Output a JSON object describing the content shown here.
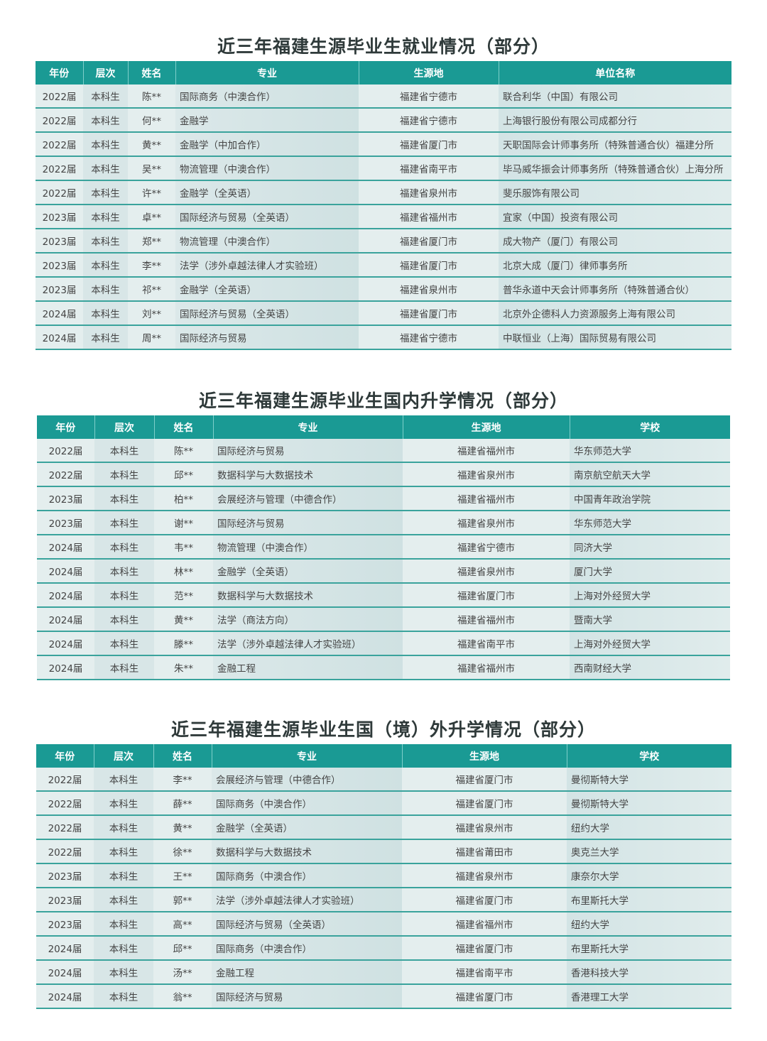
{
  "tables": [
    {
      "title": "近三年福建生源毕业生就业情况（部分）",
      "headers": [
        "年份",
        "层次",
        "姓名",
        "专业",
        "生源地",
        "单位名称"
      ],
      "rows": [
        [
          "2022届",
          "本科生",
          "陈**",
          "国际商务（中澳合作）",
          "福建省宁德市",
          "联合利华（中国）有限公司"
        ],
        [
          "2022届",
          "本科生",
          "何**",
          "金融学",
          "福建省宁德市",
          "上海银行股份有限公司成都分行"
        ],
        [
          "2022届",
          "本科生",
          "黄**",
          "金融学（中加合作）",
          "福建省厦门市",
          "天职国际会计师事务所（特殊普通合伙）福建分所"
        ],
        [
          "2022届",
          "本科生",
          "吴**",
          "物流管理（中澳合作）",
          "福建省南平市",
          "毕马威华振会计师事务所（特殊普通合伙）上海分所"
        ],
        [
          "2022届",
          "本科生",
          "许**",
          "金融学（全英语）",
          "福建省泉州市",
          "斐乐服饰有限公司"
        ],
        [
          "2023届",
          "本科生",
          "卓**",
          "国际经济与贸易（全英语）",
          "福建省福州市",
          "宜家（中国）投资有限公司"
        ],
        [
          "2023届",
          "本科生",
          "郑**",
          "物流管理（中澳合作）",
          "福建省厦门市",
          "成大物产（厦门）有限公司"
        ],
        [
          "2023届",
          "本科生",
          "李**",
          "法学（涉外卓越法律人才实验班）",
          "福建省厦门市",
          "北京大成（厦门）律师事务所"
        ],
        [
          "2023届",
          "本科生",
          "祁**",
          "金融学（全英语）",
          "福建省泉州市",
          "普华永道中天会计师事务所（特殊普通合伙）"
        ],
        [
          "2024届",
          "本科生",
          "刘**",
          "国际经济与贸易（全英语）",
          "福建省厦门市",
          "北京外企德科人力资源服务上海有限公司"
        ],
        [
          "2024届",
          "本科生",
          "周**",
          "国际经济与贸易",
          "福建省宁德市",
          "中联恒业（上海）国际贸易有限公司"
        ]
      ]
    },
    {
      "title": "近三年福建生源毕业生国内升学情况（部分）",
      "headers": [
        "年份",
        "层次",
        "姓名",
        "专业",
        "生源地",
        "学校"
      ],
      "rows": [
        [
          "2022届",
          "本科生",
          "陈**",
          "国际经济与贸易",
          "福建省福州市",
          "华东师范大学"
        ],
        [
          "2022届",
          "本科生",
          "邱**",
          "数据科学与大数据技术",
          "福建省泉州市",
          "南京航空航天大学"
        ],
        [
          "2023届",
          "本科生",
          "柏**",
          "会展经济与管理（中德合作）",
          "福建省福州市",
          "中国青年政治学院"
        ],
        [
          "2023届",
          "本科生",
          "谢**",
          "国际经济与贸易",
          "福建省泉州市",
          "华东师范大学"
        ],
        [
          "2024届",
          "本科生",
          "韦**",
          "物流管理（中澳合作）",
          "福建省宁德市",
          "同济大学"
        ],
        [
          "2024届",
          "本科生",
          "林**",
          "金融学（全英语）",
          "福建省泉州市",
          "厦门大学"
        ],
        [
          "2024届",
          "本科生",
          "范**",
          "数据科学与大数据技术",
          "福建省厦门市",
          "上海对外经贸大学"
        ],
        [
          "2024届",
          "本科生",
          "黄**",
          "法学（商法方向）",
          "福建省福州市",
          "暨南大学"
        ],
        [
          "2024届",
          "本科生",
          "滕**",
          "法学（涉外卓越法律人才实验班）",
          "福建省南平市",
          "上海对外经贸大学"
        ],
        [
          "2024届",
          "本科生",
          "朱**",
          "金融工程",
          "福建省福州市",
          "西南财经大学"
        ]
      ]
    },
    {
      "title": "近三年福建生源毕业生国（境）外升学情况（部分）",
      "headers": [
        "年份",
        "层次",
        "姓名",
        "专业",
        "生源地",
        "学校"
      ],
      "rows": [
        [
          "2022届",
          "本科生",
          "李**",
          "会展经济与管理（中德合作）",
          "福建省厦门市",
          "曼彻斯特大学"
        ],
        [
          "2022届",
          "本科生",
          "薛**",
          "国际商务（中澳合作）",
          "福建省厦门市",
          "曼彻斯特大学"
        ],
        [
          "2022届",
          "本科生",
          "黄**",
          "金融学（全英语）",
          "福建省泉州市",
          "纽约大学"
        ],
        [
          "2022届",
          "本科生",
          "徐**",
          "数据科学与大数据技术",
          "福建省莆田市",
          "奥克兰大学"
        ],
        [
          "2023届",
          "本科生",
          "王**",
          "国际商务（中澳合作）",
          "福建省泉州市",
          "康奈尔大学"
        ],
        [
          "2023届",
          "本科生",
          "郭**",
          "法学（涉外卓越法律人才实验班）",
          "福建省厦门市",
          "布里斯托大学"
        ],
        [
          "2023届",
          "本科生",
          "高**",
          "国际经济与贸易（全英语）",
          "福建省福州市",
          "纽约大学"
        ],
        [
          "2024届",
          "本科生",
          "邱**",
          "国际商务（中澳合作）",
          "福建省厦门市",
          "布里斯托大学"
        ],
        [
          "2024届",
          "本科生",
          "汤**",
          "金融工程",
          "福建省南平市",
          "香港科技大学"
        ],
        [
          "2024届",
          "本科生",
          "翁**",
          "国际经济与贸易",
          "福建省厦门市",
          "香港理工大学"
        ]
      ]
    }
  ],
  "colors": {
    "header_bg": "#1a9a94",
    "row_bg": "#e4eeee",
    "divider": "#3aa39c"
  }
}
